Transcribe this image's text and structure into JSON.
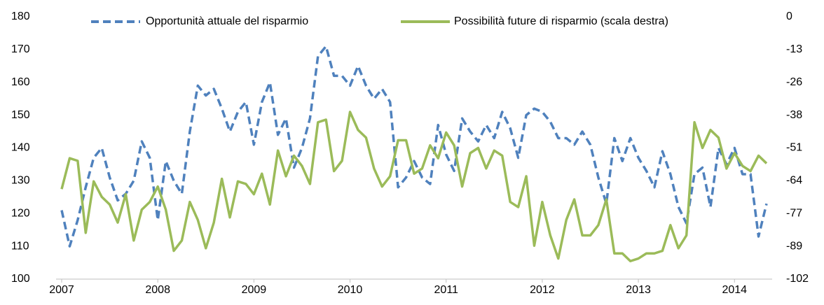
{
  "chart_data": {
    "type": "line",
    "categories": [
      "2007",
      null,
      null,
      null,
      null,
      null,
      null,
      null,
      null,
      null,
      null,
      null,
      "2008",
      null,
      null,
      null,
      null,
      null,
      null,
      null,
      null,
      null,
      null,
      null,
      "2009",
      null,
      null,
      null,
      null,
      null,
      null,
      null,
      null,
      null,
      null,
      null,
      "2010",
      null,
      null,
      null,
      null,
      null,
      null,
      null,
      null,
      null,
      null,
      null,
      "2011",
      null,
      null,
      null,
      null,
      null,
      null,
      null,
      null,
      null,
      null,
      null,
      "2012",
      null,
      null,
      null,
      null,
      null,
      null,
      null,
      null,
      null,
      null,
      null,
      "2013",
      null,
      null,
      null,
      null,
      null,
      null,
      null,
      null,
      null,
      null,
      null,
      "2014",
      null,
      null,
      null,
      null
    ],
    "series": [
      {
        "name": "Opportunità attuale del risparmio",
        "color": "#4f81bd",
        "dashed": true,
        "values": [
          121,
          110,
          118,
          128,
          137,
          140,
          131,
          124,
          126,
          130,
          142,
          137,
          118,
          136,
          130,
          126,
          145,
          159,
          156,
          158,
          152,
          145,
          151,
          154,
          141,
          154,
          160,
          144,
          149,
          134,
          140,
          149,
          168,
          171,
          162,
          162,
          159,
          165,
          159,
          155,
          158,
          154,
          128,
          131,
          136,
          131,
          129,
          147,
          138,
          133,
          149,
          145,
          142,
          147,
          143,
          151,
          146,
          137,
          150,
          152,
          151,
          148,
          143,
          143,
          141,
          145,
          141,
          131,
          123,
          143,
          136,
          143,
          137,
          133,
          128,
          139,
          132,
          122,
          117,
          132,
          134,
          122,
          140,
          135,
          140,
          132,
          132,
          113,
          123
        ]
      },
      {
        "name": "Possibilità future di risparmio (scala destra)",
        "color": "#9bbb59",
        "axis": "y2",
        "values": [
          -67,
          -55,
          -56,
          -84,
          -64,
          -70,
          -73,
          -80,
          -69,
          -87,
          -75,
          -72,
          -66,
          -75,
          -91,
          -87,
          -72,
          -79,
          -90,
          -80,
          -63,
          -78,
          -64,
          -65,
          -69,
          -61,
          -73,
          -52,
          -62,
          -54,
          -58,
          -65,
          -41,
          -40,
          -60,
          -56,
          -37,
          -44,
          -47,
          -59,
          -66,
          -62,
          -48,
          -48,
          -61,
          -59,
          -50,
          -55,
          -45,
          -50,
          -66,
          -53,
          -51,
          -59,
          -52,
          -54,
          -72,
          -74,
          -62,
          -89,
          -72,
          -85,
          -94,
          -79,
          -71,
          -85,
          -85,
          -81,
          -71,
          -92,
          -92,
          -95,
          -94,
          -92,
          -92,
          -91,
          -81,
          -90,
          -85,
          -41,
          -51,
          -44,
          -47,
          -59,
          -53,
          -58,
          -60,
          -54,
          -57
        ]
      }
    ],
    "ylim": [
      100,
      180
    ],
    "yticks": [
      100,
      110,
      120,
      130,
      140,
      150,
      160,
      170,
      180
    ],
    "y2lim": [
      -102,
      0
    ],
    "y2ticks": [
      {
        "value": -102,
        "label": "-102"
      },
      {
        "value": -89.25,
        "label": "-89"
      },
      {
        "value": -76.5,
        "label": "-77"
      },
      {
        "value": -63.75,
        "label": "-64"
      },
      {
        "value": -51,
        "label": "-51"
      },
      {
        "value": -38.25,
        "label": "-38"
      },
      {
        "value": -25.5,
        "label": "-26"
      },
      {
        "value": -12.75,
        "label": "-13"
      },
      {
        "value": 0,
        "label": "0"
      }
    ],
    "legend": "top"
  }
}
